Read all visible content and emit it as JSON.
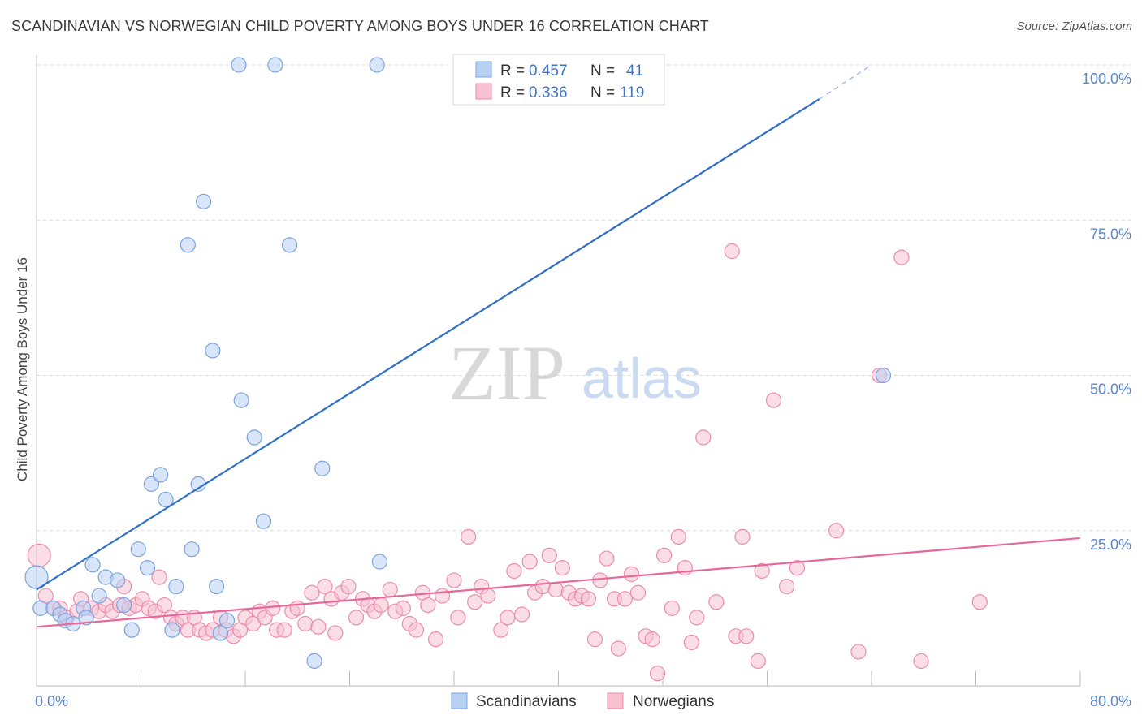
{
  "title": "SCANDINAVIAN VS NORWEGIAN CHILD POVERTY AMONG BOYS UNDER 16 CORRELATION CHART",
  "source": "Source: ZipAtlas.com",
  "watermark": {
    "zip": "ZIP",
    "atlas": "atlas"
  },
  "colors": {
    "blue_fill": "#b9d0f2",
    "blue_stroke": "#7aa3df",
    "blue_line": "#2f6fc9",
    "pink_fill": "#f7c1d2",
    "pink_stroke": "#ea8dab",
    "pink_line": "#e8679a",
    "tick_label": "#5b86c9"
  },
  "legend": {
    "items": [
      {
        "r_label": "R = ",
        "r_value": "0.457",
        "n_label": "N = ",
        "n_value": "41"
      },
      {
        "r_label": "R = ",
        "r_value": "0.336",
        "n_label": "N = ",
        "n_value": "119"
      }
    ]
  },
  "bottom_legend": [
    "Scandinavians",
    "Norwegians"
  ],
  "chart_data": {
    "type": "scatter",
    "title": "SCANDINAVIAN VS NORWEGIAN CHILD POVERTY AMONG BOYS UNDER 16 CORRELATION CHART",
    "xlabel": "",
    "ylabel": "Child Poverty Among Boys Under 16",
    "xlim": [
      0,
      80
    ],
    "ylim": [
      0,
      105
    ],
    "x_ticks": [
      0,
      8,
      16,
      24,
      32,
      40,
      48,
      56,
      64,
      72,
      80
    ],
    "x_tick_labels": {
      "0": "0.0%",
      "80": "80.0%"
    },
    "y_ticks": [
      25,
      50,
      75,
      100
    ],
    "y_tick_labels": [
      "25.0%",
      "50.0%",
      "75.0%",
      "100.0%"
    ],
    "grid": true,
    "legend_position": "top-center",
    "series": [
      {
        "name": "Scandinavians",
        "regression": {
          "x0": 0,
          "y0": 15.5,
          "x1": 60,
          "y1": 94.5,
          "dash_to_x": 64,
          "dash_to_y": 100
        },
        "points": [
          [
            0,
            17.5,
            14
          ],
          [
            0.3,
            12.5,
            9
          ],
          [
            1.3,
            12.5,
            9
          ],
          [
            1.8,
            11.5,
            9
          ],
          [
            2.2,
            10.5,
            9
          ],
          [
            2.8,
            10,
            9
          ],
          [
            3.6,
            12.5,
            9
          ],
          [
            3.8,
            11,
            9
          ],
          [
            4.3,
            19.5,
            9
          ],
          [
            4.8,
            14.5,
            9
          ],
          [
            5.3,
            17.5,
            9
          ],
          [
            6.2,
            17,
            9
          ],
          [
            6.7,
            13,
            9
          ],
          [
            7.3,
            9,
            9
          ],
          [
            7.8,
            22,
            9
          ],
          [
            8.5,
            19,
            9
          ],
          [
            8.8,
            32.5,
            9
          ],
          [
            9.5,
            34,
            9
          ],
          [
            9.9,
            30,
            9
          ],
          [
            10.4,
            9,
            9
          ],
          [
            10.7,
            16,
            9
          ],
          [
            11.6,
            71,
            9
          ],
          [
            11.9,
            22,
            9
          ],
          [
            12.4,
            32.5,
            9
          ],
          [
            12.8,
            78,
            9
          ],
          [
            13.5,
            54,
            9
          ],
          [
            13.8,
            16,
            9
          ],
          [
            14.1,
            8.5,
            9
          ],
          [
            14.6,
            10.5,
            9
          ],
          [
            15.5,
            100,
            9
          ],
          [
            15.7,
            46,
            9
          ],
          [
            16.7,
            40,
            9
          ],
          [
            17.4,
            26.5,
            9
          ],
          [
            18.3,
            100,
            9
          ],
          [
            19.4,
            71,
            9
          ],
          [
            21.3,
            4,
            9
          ],
          [
            21.9,
            35,
            9
          ],
          [
            26.1,
            100,
            9
          ],
          [
            26.3,
            20,
            9
          ],
          [
            64.9,
            50,
            9
          ]
        ]
      },
      {
        "name": "Norwegians",
        "regression": {
          "x0": 0,
          "y0": 9.5,
          "x1": 80,
          "y1": 23.8
        },
        "points": [
          [
            0.2,
            21,
            14
          ],
          [
            0.7,
            14.5,
            9
          ],
          [
            1.3,
            12.5,
            9
          ],
          [
            1.8,
            12.5,
            9
          ],
          [
            2.3,
            11,
            9
          ],
          [
            3.1,
            12,
            9
          ],
          [
            3.4,
            14,
            9
          ],
          [
            4.2,
            12.5,
            9
          ],
          [
            4.8,
            12,
            9
          ],
          [
            5.3,
            13,
            9
          ],
          [
            5.8,
            12,
            9
          ],
          [
            6.4,
            13,
            9
          ],
          [
            6.7,
            16,
            9
          ],
          [
            7.1,
            12.5,
            9
          ],
          [
            7.6,
            13,
            9
          ],
          [
            8.1,
            14,
            9
          ],
          [
            8.6,
            12.5,
            9
          ],
          [
            9.1,
            12,
            9
          ],
          [
            9.4,
            17.5,
            9
          ],
          [
            9.8,
            13,
            9
          ],
          [
            10.3,
            11,
            9
          ],
          [
            10.7,
            10,
            9
          ],
          [
            11.2,
            11,
            9
          ],
          [
            11.6,
            9,
            9
          ],
          [
            12.1,
            11,
            9
          ],
          [
            12.5,
            9,
            9
          ],
          [
            13,
            8.5,
            9
          ],
          [
            13.5,
            9,
            9
          ],
          [
            14.1,
            11,
            9
          ],
          [
            14.5,
            9,
            9
          ],
          [
            15.1,
            8,
            9
          ],
          [
            15.6,
            9,
            9
          ],
          [
            16,
            11,
            9
          ],
          [
            16.6,
            10,
            9
          ],
          [
            17.1,
            12,
            9
          ],
          [
            17.5,
            11,
            9
          ],
          [
            18.1,
            12.5,
            9
          ],
          [
            18.4,
            9,
            9
          ],
          [
            19,
            9,
            9
          ],
          [
            19.6,
            12,
            9
          ],
          [
            20,
            12.5,
            9
          ],
          [
            20.6,
            10,
            9
          ],
          [
            21.1,
            15,
            9
          ],
          [
            21.6,
            9.5,
            9
          ],
          [
            22.1,
            16,
            9
          ],
          [
            22.6,
            14,
            9
          ],
          [
            22.9,
            8.5,
            9
          ],
          [
            23.4,
            15,
            9
          ],
          [
            23.9,
            16,
            9
          ],
          [
            24.5,
            11,
            9
          ],
          [
            25,
            14,
            9
          ],
          [
            25.4,
            13,
            9
          ],
          [
            25.9,
            12,
            9
          ],
          [
            26.4,
            13,
            9
          ],
          [
            27.1,
            15.5,
            9
          ],
          [
            27.5,
            12,
            9
          ],
          [
            28.1,
            12.5,
            9
          ],
          [
            28.6,
            10,
            9
          ],
          [
            29.1,
            9,
            9
          ],
          [
            29.6,
            15,
            9
          ],
          [
            30,
            13,
            9
          ],
          [
            30.6,
            7.5,
            9
          ],
          [
            31.1,
            14.5,
            9
          ],
          [
            32,
            17,
            9
          ],
          [
            32.3,
            11,
            9
          ],
          [
            33.1,
            24,
            9
          ],
          [
            33.6,
            13.5,
            9
          ],
          [
            34.1,
            16,
            9
          ],
          [
            34.6,
            14.5,
            9
          ],
          [
            35.6,
            9,
            9
          ],
          [
            36.1,
            11,
            9
          ],
          [
            36.6,
            18.5,
            9
          ],
          [
            37.2,
            11.5,
            9
          ],
          [
            37.8,
            20,
            9
          ],
          [
            38.2,
            15,
            9
          ],
          [
            38.8,
            16,
            9
          ],
          [
            39.3,
            21,
            9
          ],
          [
            39.8,
            15.5,
            9
          ],
          [
            40.3,
            19,
            9
          ],
          [
            40.8,
            15,
            9
          ],
          [
            41.3,
            14,
            9
          ],
          [
            41.8,
            14.5,
            9
          ],
          [
            42.3,
            14,
            9
          ],
          [
            42.8,
            7.5,
            9
          ],
          [
            43.2,
            17,
            9
          ],
          [
            43.7,
            20.5,
            9
          ],
          [
            44.3,
            14,
            9
          ],
          [
            44.6,
            6,
            9
          ],
          [
            45.1,
            14,
            9
          ],
          [
            45.6,
            18,
            9
          ],
          [
            46.1,
            15,
            9
          ],
          [
            46.7,
            8,
            9
          ],
          [
            47.2,
            7.5,
            9
          ],
          [
            47.6,
            2,
            9
          ],
          [
            48.1,
            21,
            9
          ],
          [
            48.7,
            12.5,
            9
          ],
          [
            49.2,
            24,
            9
          ],
          [
            49.7,
            19,
            9
          ],
          [
            50.2,
            7,
            9
          ],
          [
            50.6,
            11,
            9
          ],
          [
            51.1,
            40,
            9
          ],
          [
            52.1,
            13.5,
            9
          ],
          [
            53.3,
            70,
            9
          ],
          [
            53.6,
            8,
            9
          ],
          [
            54.1,
            24,
            9
          ],
          [
            54.4,
            8,
            9
          ],
          [
            55.3,
            4,
            9
          ],
          [
            55.6,
            18.5,
            9
          ],
          [
            56.5,
            46,
            9
          ],
          [
            57.5,
            16,
            9
          ],
          [
            58.3,
            19,
            9
          ],
          [
            61.3,
            25,
            9
          ],
          [
            63,
            5.5,
            9
          ],
          [
            64.6,
            50,
            9
          ],
          [
            66.3,
            69,
            9
          ],
          [
            67.8,
            4,
            9
          ],
          [
            72.3,
            13.5,
            9
          ]
        ]
      }
    ]
  }
}
